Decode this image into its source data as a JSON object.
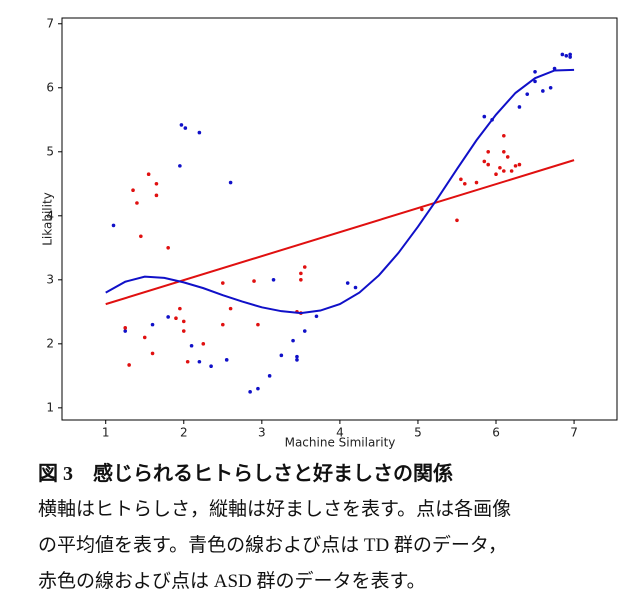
{
  "chart_data": {
    "type": "scatter",
    "xlabel": "Machine Similarity",
    "ylabel": "Likability",
    "xlim": [
      0.44,
      7.55
    ],
    "ylim": [
      0.81,
      7.09
    ],
    "xticks": [
      1,
      2,
      3,
      4,
      5,
      6,
      7
    ],
    "yticks": [
      1,
      2,
      3,
      4,
      5,
      6,
      7
    ],
    "series": [
      {
        "color": "#1010c8",
        "type": "scatter",
        "x": [
          1.1,
          1.25,
          1.6,
          1.8,
          1.95,
          1.97,
          2.02,
          2.2,
          2.1,
          2.2,
          2.35,
          2.6,
          2.55,
          2.85,
          2.95,
          3.1,
          3.15,
          3.25,
          3.4,
          3.45,
          3.45,
          3.55,
          3.7,
          4.1,
          4.2,
          5.85,
          5.95,
          6.3,
          6.4,
          6.5,
          6.5,
          6.6,
          6.7,
          6.75,
          6.85,
          6.9,
          6.95,
          6.95
        ],
        "values": [
          3.85,
          2.2,
          2.3,
          2.42,
          4.78,
          5.42,
          5.37,
          5.3,
          1.97,
          1.72,
          1.65,
          4.52,
          1.75,
          1.25,
          1.3,
          1.5,
          3.0,
          1.82,
          2.05,
          1.8,
          1.75,
          2.2,
          2.43,
          2.95,
          2.88,
          5.55,
          5.5,
          5.7,
          5.9,
          6.1,
          6.25,
          5.95,
          6.0,
          6.3,
          6.52,
          6.5,
          6.48,
          6.52
        ]
      },
      {
        "color": "#e01010",
        "type": "scatter",
        "x": [
          1.25,
          1.3,
          1.35,
          1.4,
          1.45,
          1.5,
          1.55,
          1.6,
          1.65,
          1.65,
          1.8,
          1.9,
          1.95,
          2.0,
          2.0,
          2.05,
          2.25,
          2.5,
          2.5,
          2.6,
          2.9,
          2.95,
          3.5,
          3.55,
          3.5,
          3.45,
          3.5,
          5.05,
          5.5,
          5.55,
          5.6,
          5.75,
          5.85,
          5.9,
          5.9,
          6.0,
          6.05,
          6.1,
          6.1,
          6.15,
          6.2,
          6.25,
          6.3,
          6.1
        ],
        "values": [
          2.25,
          1.67,
          4.4,
          4.2,
          3.68,
          2.1,
          4.65,
          1.85,
          4.5,
          4.32,
          3.5,
          2.4,
          2.55,
          2.35,
          2.2,
          1.72,
          2.0,
          2.95,
          2.3,
          2.55,
          2.98,
          2.3,
          3.1,
          3.2,
          3.0,
          2.5,
          2.48,
          4.1,
          3.93,
          4.57,
          4.5,
          4.52,
          4.85,
          4.8,
          5.0,
          4.65,
          4.75,
          5.25,
          5.0,
          4.92,
          4.7,
          4.78,
          4.8,
          4.7
        ]
      },
      {
        "color": "#e01010",
        "type": "line",
        "x": [
          1,
          7
        ],
        "values": [
          2.62,
          4.87
        ]
      },
      {
        "color": "#1010c8",
        "type": "line",
        "x": [
          1,
          1.25,
          1.5,
          1.75,
          2,
          2.25,
          2.5,
          2.75,
          3,
          3.25,
          3.5,
          3.75,
          4,
          4.25,
          4.5,
          4.75,
          5,
          5.25,
          5.5,
          5.75,
          6,
          6.25,
          6.5,
          6.75,
          7
        ],
        "values": [
          2.8,
          2.97,
          3.05,
          3.03,
          2.96,
          2.87,
          2.76,
          2.66,
          2.57,
          2.51,
          2.48,
          2.52,
          2.62,
          2.8,
          3.07,
          3.42,
          3.83,
          4.27,
          4.73,
          5.18,
          5.58,
          5.92,
          6.15,
          6.27,
          6.28
        ]
      }
    ]
  },
  "caption": {
    "title": "図 3　感じられるヒトらしさと好ましさの関係",
    "lines": [
      "横軸はヒトらしさ，縦軸は好ましさを表す。点は各画像",
      "の平均値を表す。青色の線および点は TD 群のデータ，",
      "赤色の線および点は ASD 群のデータを表す。"
    ]
  }
}
